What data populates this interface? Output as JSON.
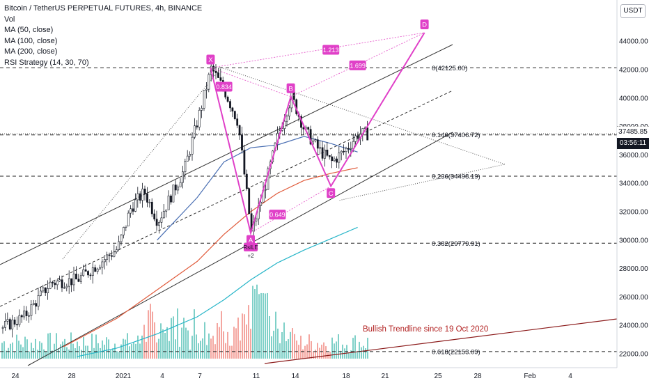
{
  "legend": {
    "title": "Bitcoin / TetherUS PERPETUAL FUTURES, 4h, BINANCE",
    "indicators": [
      "Vol",
      "MA (50, close)",
      "MA (100, close)",
      "MA (200, close)",
      "RSI Strategy (14, 30, 70)"
    ]
  },
  "currency_button": "USDT",
  "price_labels": {
    "last_price": "37485.85",
    "countdown": "03:56:11"
  },
  "chart_data": {
    "type": "candlestick",
    "symbol": "Bitcoin / TetherUS PERPETUAL FUTURES",
    "interval": "4h",
    "exchange": "BINANCE",
    "ylim": [
      21000,
      46000
    ],
    "y_ticks": [
      "22000.00",
      "24000.00",
      "26000.00",
      "28000.00",
      "30000.00",
      "32000.00",
      "34000.00",
      "36000.00",
      "38000.00",
      "40000.00",
      "42000.00",
      "44000.00"
    ],
    "x_ticks": [
      "24",
      "28",
      "2021",
      "4",
      "7",
      "11",
      "14",
      "18",
      "21",
      "25",
      "28",
      "Feb",
      "4"
    ],
    "price_path": [
      {
        "date": "2020-12-22",
        "price": 23200
      },
      {
        "date": "2020-12-25",
        "price": 24600
      },
      {
        "date": "2020-12-27",
        "price": 27000
      },
      {
        "date": "2020-12-29",
        "price": 27200
      },
      {
        "date": "2021-01-01",
        "price": 29400
      },
      {
        "date": "2021-01-02",
        "price": 32300
      },
      {
        "date": "2021-01-03",
        "price": 33400
      },
      {
        "date": "2021-01-04",
        "price": 31300
      },
      {
        "date": "2021-01-06",
        "price": 35000
      },
      {
        "date": "2021-01-07",
        "price": 38500
      },
      {
        "date": "2021-01-08",
        "price": 42100
      },
      {
        "date": "2021-01-09",
        "price": 40500
      },
      {
        "date": "2021-01-10",
        "price": 38300
      },
      {
        "date": "2021-01-11",
        "price": 30500
      },
      {
        "date": "2021-01-12",
        "price": 33700
      },
      {
        "date": "2021-01-13",
        "price": 37400
      },
      {
        "date": "2021-01-14",
        "price": 40100
      },
      {
        "date": "2021-01-15",
        "price": 37700
      },
      {
        "date": "2021-01-16",
        "price": 36400
      },
      {
        "date": "2021-01-17",
        "price": 35500
      },
      {
        "date": "2021-01-18",
        "price": 36300
      },
      {
        "date": "2021-01-19",
        "price": 37480
      }
    ],
    "moving_averages": [
      {
        "name": "MA (50, close)",
        "color": "#4a6fb3",
        "values": [
          {
            "date": "2021-01-04",
            "price": 30000
          },
          {
            "date": "2021-01-07",
            "price": 33000
          },
          {
            "date": "2021-01-09",
            "price": 35500
          },
          {
            "date": "2021-01-11",
            "price": 36500
          },
          {
            "date": "2021-01-13",
            "price": 36700
          },
          {
            "date": "2021-01-15",
            "price": 37300
          },
          {
            "date": "2021-01-17",
            "price": 36800
          },
          {
            "date": "2021-01-19",
            "price": 36200
          }
        ]
      },
      {
        "name": "MA (100, close)",
        "color": "#e05a3a",
        "values": [
          {
            "date": "2020-12-28",
            "price": 22500
          },
          {
            "date": "2021-01-01",
            "price": 24500
          },
          {
            "date": "2021-01-04",
            "price": 26500
          },
          {
            "date": "2021-01-07",
            "price": 28500
          },
          {
            "date": "2021-01-09",
            "price": 30400
          },
          {
            "date": "2021-01-11",
            "price": 32000
          },
          {
            "date": "2021-01-13",
            "price": 33300
          },
          {
            "date": "2021-01-15",
            "price": 34200
          },
          {
            "date": "2021-01-17",
            "price": 34700
          },
          {
            "date": "2021-01-19",
            "price": 35100
          }
        ]
      },
      {
        "name": "MA (200, close)",
        "color": "#26b5c8",
        "values": [
          {
            "date": "2020-12-29",
            "price": 21800
          },
          {
            "date": "2021-01-01",
            "price": 22400
          },
          {
            "date": "2021-01-04",
            "price": 23400
          },
          {
            "date": "2021-01-07",
            "price": 24600
          },
          {
            "date": "2021-01-09",
            "price": 25800
          },
          {
            "date": "2021-01-11",
            "price": 27200
          },
          {
            "date": "2021-01-13",
            "price": 28400
          },
          {
            "date": "2021-01-15",
            "price": 29300
          },
          {
            "date": "2021-01-17",
            "price": 30100
          },
          {
            "date": "2021-01-19",
            "price": 30900
          }
        ]
      }
    ],
    "fib_levels": [
      {
        "label": "0(42125.00)",
        "price": 42125
      },
      {
        "label": "0.146(37406.72)",
        "price": 37406.72
      },
      {
        "label": "0.236(34498.19)",
        "price": 34498.19
      },
      {
        "label": "0.382(29779.91)",
        "price": 29779.91
      },
      {
        "label": "0.618(22153.09)",
        "price": 22153.09
      }
    ],
    "harmonic_points": [
      {
        "label": "X",
        "date": "2021-01-08",
        "price": 42125
      },
      {
        "label": "A",
        "date": "2021-01-11",
        "price": 30500
      },
      {
        "label": "B",
        "date": "2021-01-14",
        "price": 40100
      },
      {
        "label": "C",
        "date": "2021-01-17",
        "price": 33800
      },
      {
        "label": "D",
        "date": "2021-01-24",
        "price": 44600
      }
    ],
    "ratios": [
      {
        "label": "0.834",
        "date": "2021-01-09",
        "price": 40800
      },
      {
        "label": "1.213",
        "date": "2021-01-17",
        "price": 43400
      },
      {
        "label": "1.699",
        "date": "2021-01-19",
        "price": 42300
      },
      {
        "label": "0.649",
        "date": "2021-01-13",
        "price": 31800
      }
    ],
    "signal": {
      "label": "RsiLE",
      "sub": "+2",
      "date": "2021-01-11",
      "price": 29500
    },
    "annotations": [
      {
        "text": "Bullish Trendline since 19 Oct 2020",
        "color": "#b22222"
      }
    ],
    "last_price": 37485.85,
    "current_price_line": 37485.85,
    "grid": false,
    "legend_position": "top-left"
  }
}
